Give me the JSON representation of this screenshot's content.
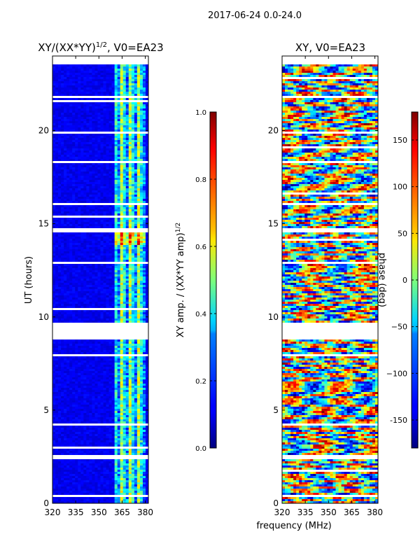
{
  "figure_title": "2017-06-24 0.0-24.0",
  "shared_xlabel": "frequency (MHz)",
  "chart_data": [
    {
      "type": "heatmap",
      "title": "XY/(XX*YY)",
      "title_superscript": "1/2",
      "title_suffix": ", V0=EA23",
      "xlabel": "",
      "ylabel": "UT (hours)",
      "xlim": [
        320,
        382
      ],
      "ylim": [
        0,
        24
      ],
      "xticks": [
        "320",
        "335",
        "350",
        "365",
        "380"
      ],
      "yticks": [
        "0",
        "5",
        "10",
        "15",
        "20"
      ],
      "colorbar": {
        "label": "XY amp. / (XX*YY amp)",
        "label_superscript": "1/2",
        "range": [
          0.0,
          1.0
        ],
        "ticks": [
          "0.0",
          "0.2",
          "0.4",
          "0.6",
          "0.8",
          "1.0"
        ],
        "colormap": "jet"
      }
    },
    {
      "type": "heatmap",
      "title": "XY, V0=EA23",
      "xlabel": "frequency (MHz)",
      "ylabel": "",
      "xlim": [
        320,
        382
      ],
      "ylim": [
        0,
        24
      ],
      "xticks": [
        "320",
        "335",
        "350",
        "365",
        "380"
      ],
      "yticks": [
        "0",
        "5",
        "10",
        "15",
        "20"
      ],
      "colorbar": {
        "label": "phase (deg)",
        "range": [
          -180,
          180
        ],
        "ticks": [
          "-150",
          "−100",
          "−50",
          "0",
          "50",
          "100",
          "150"
        ],
        "colormap": "jet"
      }
    }
  ]
}
